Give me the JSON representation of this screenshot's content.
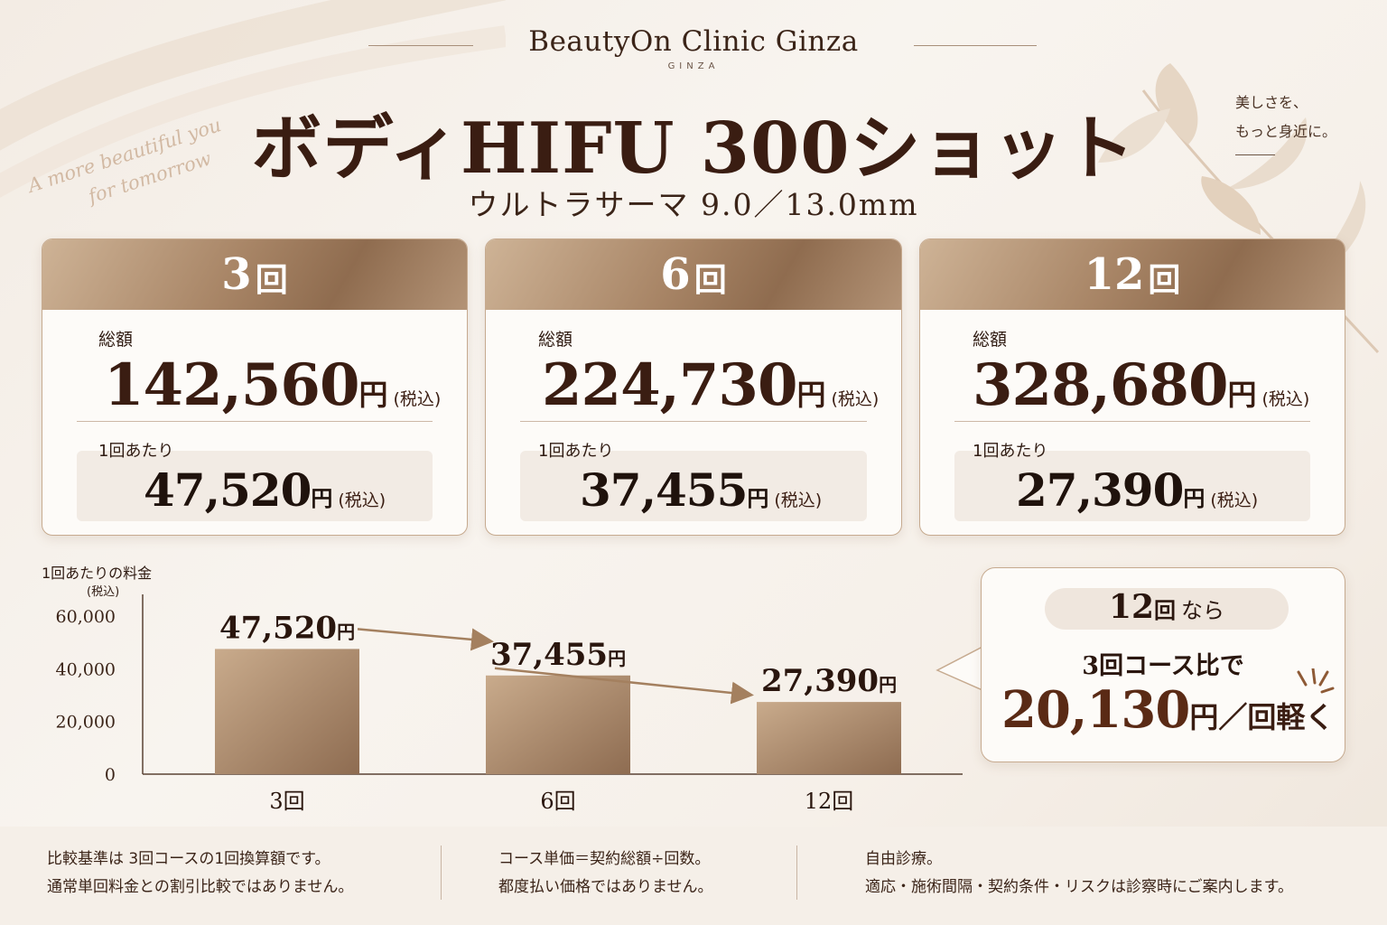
{
  "header": {
    "clinic_name": "BeautyOn Clinic Ginza",
    "clinic_sub": "GINZA",
    "title": "ボディHIFU 300ショット",
    "subtitle": "ウルトラサーマ 9.0／13.0mm",
    "script_line1": "A more beautiful you",
    "script_line2": "for tomorrow",
    "catch_line1": "美しさを、",
    "catch_line2": "もっと身近に。"
  },
  "cards": [
    {
      "count": "3",
      "unit": "回",
      "total_label": "総額",
      "total": "142,560",
      "yen": "円",
      "tax": "(税込)",
      "per_label": "1回あたり",
      "per": "47,520"
    },
    {
      "count": "6",
      "unit": "回",
      "total_label": "総額",
      "total": "224,730",
      "yen": "円",
      "tax": "(税込)",
      "per_label": "1回あたり",
      "per": "37,455"
    },
    {
      "count": "12",
      "unit": "回",
      "total_label": "総額",
      "total": "328,680",
      "yen": "円",
      "tax": "(税込)",
      "per_label": "1回あたり",
      "per": "27,390"
    }
  ],
  "chart_data": {
    "type": "bar",
    "title": "1回あたりの料金",
    "unit_label": "(税込)",
    "categories": [
      "3回",
      "6回",
      "12回"
    ],
    "values": [
      47520,
      37455,
      27390
    ],
    "data_labels": [
      "47,520",
      "37,455",
      "27,390"
    ],
    "label_suffix": "円",
    "ylim": [
      0,
      60000
    ],
    "yticks": [
      "0",
      "20,000",
      "40,000",
      "60,000"
    ],
    "ytick_values": [
      0,
      20000,
      40000,
      60000
    ],
    "bar_color": "#a88566",
    "grid": false
  },
  "callout": {
    "count": "12",
    "count_unit": "回",
    "nara": "なら",
    "line2": "3回コース比で",
    "amount": "20,130",
    "amount_suffix": "円／回軽く"
  },
  "footer": {
    "col1_line1": "比較基準は 3回コースの1回換算額です。",
    "col1_line2": "通常単回料金との割引比較ではありません。",
    "col2_line1": "コース単価＝契約総額÷回数。",
    "col2_line2": "都度払い価格ではありません。",
    "col3_line1": "自由診療。",
    "col3_line2": "適応・施術間隔・契約条件・リスクは診察時にご案内します。"
  },
  "colors": {
    "accent": "#a88566",
    "text_dark": "#3a1d12",
    "background": "#f6f0e9"
  }
}
